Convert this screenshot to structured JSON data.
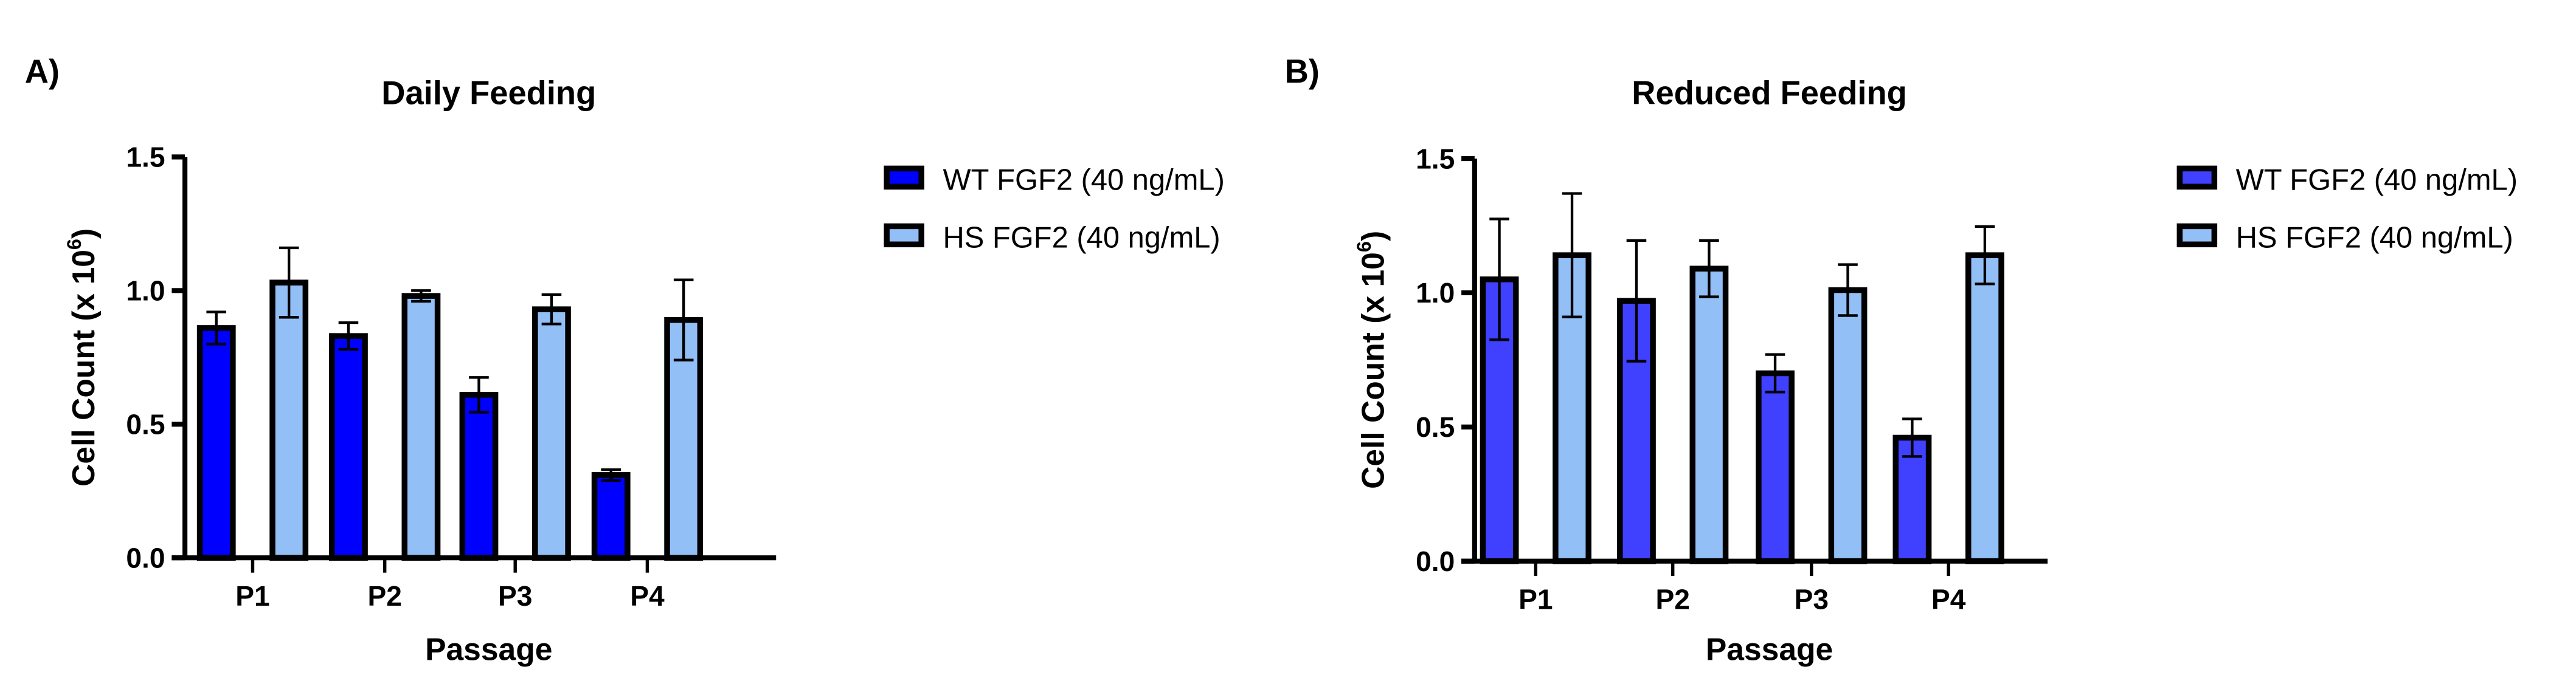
{
  "chart_data": [
    {
      "panel_label": "A)",
      "type": "bar",
      "title": "Daily Feeding",
      "xlabel": "Passage",
      "ylabel": "Cell  Count  (x 10",
      "ylabel_superscript": "6",
      "ylabel_suffix": ")",
      "ylim": [
        0,
        1.5
      ],
      "yticks": [
        "0.0",
        "0.5",
        "1.0",
        "1.5"
      ],
      "categories": [
        "P1",
        "P2",
        "P3",
        "P4"
      ],
      "grid": false,
      "legend_position": "right",
      "series": [
        {
          "name": "WT FGF2 (40 ng/mL)",
          "color": "#0000FF",
          "values": [
            0.86,
            0.83,
            0.61,
            0.31
          ],
          "errors": [
            0.06,
            0.05,
            0.065,
            0.02
          ]
        },
        {
          "name": "HS FGF2 (40 ng/mL)",
          "color": "#93BFF7",
          "values": [
            1.03,
            0.98,
            0.93,
            0.89
          ],
          "errors": [
            0.13,
            0.02,
            0.055,
            0.15
          ]
        }
      ]
    },
    {
      "panel_label": "B)",
      "type": "bar",
      "title": "Reduced Feeding",
      "xlabel": "Passage",
      "ylabel": "Cell  Count  (x 10",
      "ylabel_superscript": "6",
      "ylabel_suffix": ")",
      "ylim": [
        0,
        1.5
      ],
      "yticks": [
        "0.0",
        "0.5",
        "1.0",
        "1.5"
      ],
      "categories": [
        "P1",
        "P2",
        "P3",
        "P4"
      ],
      "grid": false,
      "legend_position": "right",
      "series": [
        {
          "name": "WT FGF2 (40 ng/mL)",
          "color": "#4040FF",
          "values": [
            1.05,
            0.97,
            0.7,
            0.46
          ],
          "errors": [
            0.225,
            0.225,
            0.07,
            0.07
          ]
        },
        {
          "name": "HS FGF2 (40 ng/mL)",
          "color": "#93BFF7",
          "values": [
            1.14,
            1.09,
            1.01,
            1.14
          ],
          "errors": [
            0.23,
            0.105,
            0.095,
            0.107
          ]
        }
      ]
    }
  ]
}
